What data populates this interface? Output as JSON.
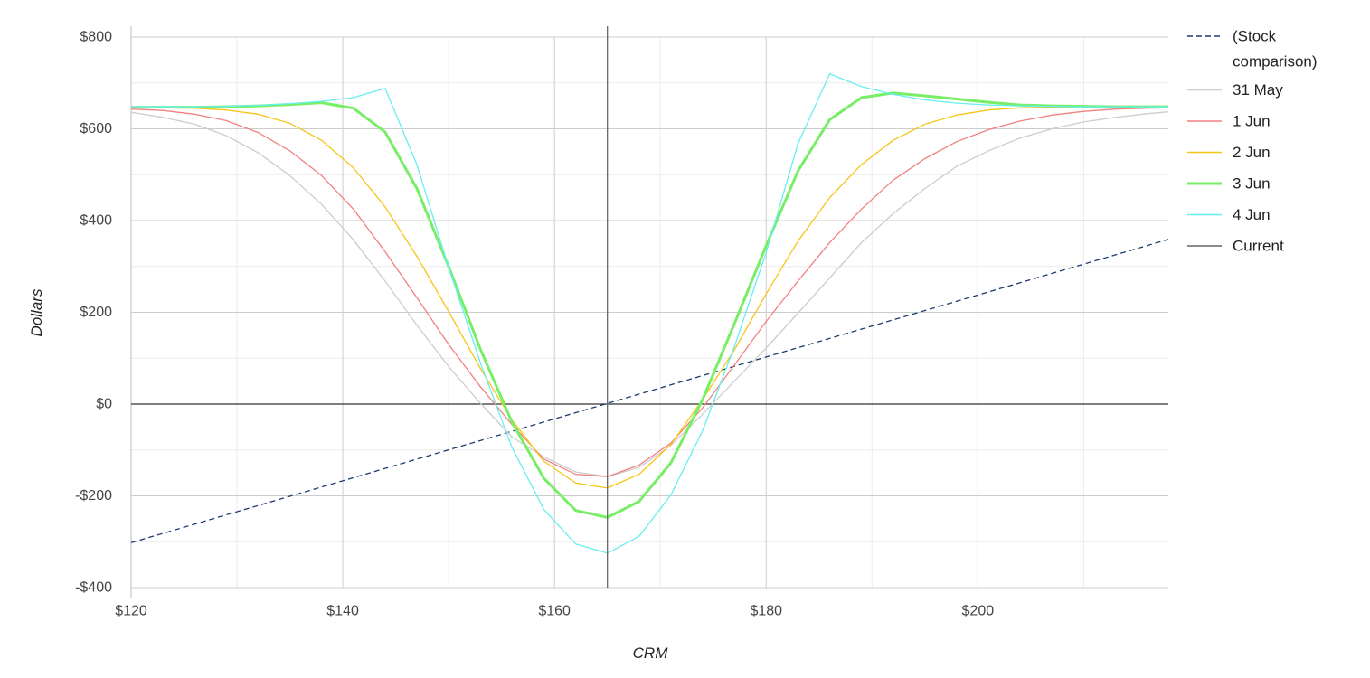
{
  "chart_data": {
    "type": "line",
    "xlabel": "CRM",
    "ylabel": "Dollars",
    "xlim": [
      120,
      218
    ],
    "ylim": [
      -400,
      800
    ],
    "x_ticks": [
      120,
      140,
      160,
      180,
      200
    ],
    "x_tick_labels": [
      "$120",
      "$140",
      "$160",
      "$180",
      "$200"
    ],
    "y_ticks": [
      800,
      600,
      400,
      200,
      0,
      -200,
      -400
    ],
    "y_tick_labels": [
      "$800",
      "$600",
      "$400",
      "$200",
      "$0",
      "-$200",
      "-$400"
    ],
    "grid": true,
    "legend_position": "right",
    "current_price": 165,
    "x": [
      120,
      123,
      126,
      129,
      132,
      135,
      138,
      141,
      144,
      147,
      150,
      153,
      156,
      159,
      162,
      165,
      168,
      171,
      174,
      177,
      180,
      183,
      186,
      189,
      192,
      195,
      198,
      201,
      204,
      207,
      210,
      213,
      216,
      218
    ],
    "series": [
      {
        "name": "(Stock comparison)",
        "legend_lines": [
          "(Stock",
          "comparison)"
        ],
        "style": "dashed",
        "color": "#1f3a70",
        "x": [
          120,
          218
        ],
        "values": [
          -302,
          359
        ]
      },
      {
        "name": "31 May",
        "style": "solid",
        "color": "#cccccc",
        "values": [
          636,
          625,
          610,
          585,
          548,
          498,
          435,
          358,
          268,
          172,
          82,
          2,
          -72,
          -115,
          -148,
          -158,
          -138,
          -90,
          -22,
          50,
          122,
          198,
          275,
          352,
          415,
          470,
          518,
          552,
          580,
          600,
          615,
          625,
          633,
          637
        ]
      },
      {
        "name": "1 Jun",
        "style": "solid",
        "color": "#f28080",
        "values": [
          643,
          640,
          632,
          618,
          592,
          552,
          498,
          425,
          332,
          232,
          130,
          38,
          -45,
          -120,
          -153,
          -158,
          -133,
          -85,
          -8,
          85,
          180,
          268,
          352,
          425,
          488,
          535,
          572,
          598,
          617,
          630,
          638,
          643,
          645,
          646
        ]
      },
      {
        "name": "2 Jun",
        "style": "solid",
        "color": "#f5c518",
        "values": [
          647,
          646,
          645,
          641,
          632,
          612,
          575,
          515,
          430,
          322,
          202,
          78,
          -35,
          -125,
          -172,
          -183,
          -153,
          -88,
          10,
          118,
          240,
          355,
          450,
          522,
          575,
          610,
          630,
          641,
          646,
          647,
          648,
          648,
          648,
          648
        ]
      },
      {
        "name": "3 Jun",
        "style": "solid",
        "color": "#77ee66",
        "width": 3,
        "values": [
          647,
          647,
          647,
          648,
          650,
          653,
          657,
          645,
          593,
          470,
          300,
          120,
          -40,
          -162,
          -232,
          -247,
          -212,
          -128,
          10,
          175,
          345,
          508,
          620,
          668,
          678,
          672,
          665,
          658,
          652,
          650,
          649,
          648,
          648,
          648
        ]
      },
      {
        "name": "4 Jun",
        "style": "solid",
        "color": "#66eef2",
        "values": [
          648,
          648,
          648,
          649,
          651,
          655,
          660,
          668,
          688,
          522,
          298,
          90,
          -95,
          -230,
          -305,
          -325,
          -288,
          -198,
          -58,
          125,
          330,
          567,
          720,
          692,
          675,
          663,
          656,
          652,
          650,
          649,
          648,
          648,
          648,
          648
        ]
      },
      {
        "name": "Current",
        "style": "solid",
        "color": "#666666",
        "vertical_at": 165
      }
    ]
  }
}
